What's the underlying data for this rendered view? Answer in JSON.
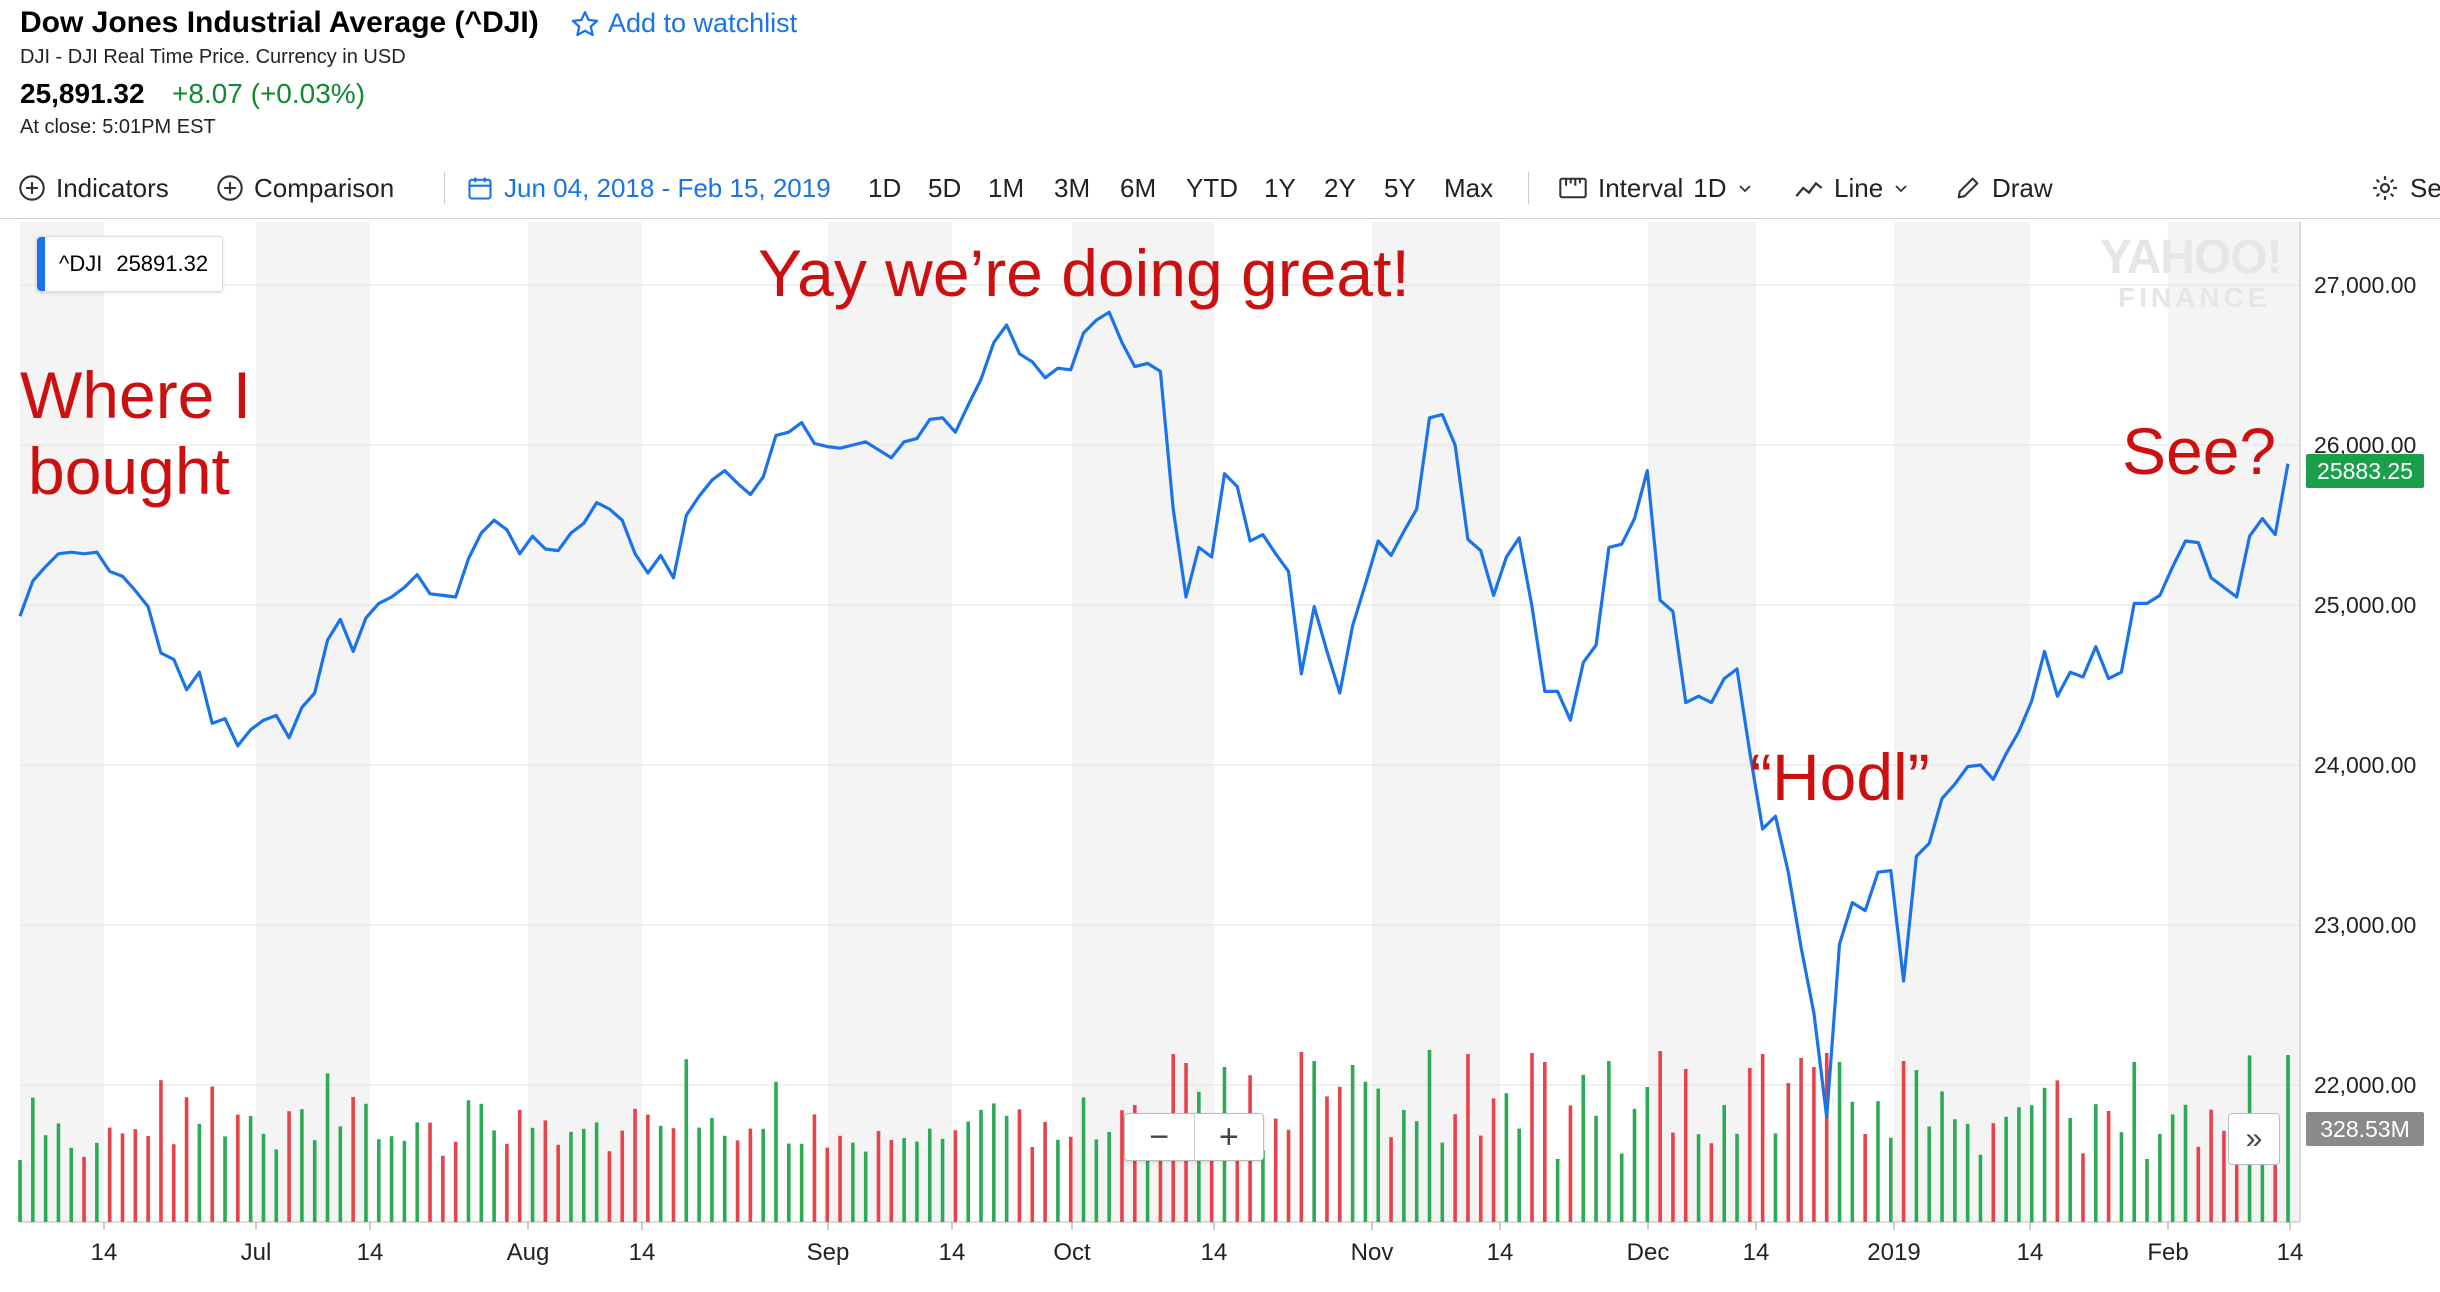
{
  "header": {
    "title": "Dow Jones Industrial Average (^DJI)",
    "watchlist_label": "Add to watchlist",
    "subtitle": "DJI - DJI Real Time Price. Currency in USD",
    "price": "25,891.32",
    "change": "+8.07 (+0.03%)",
    "close_time": "At close: 5:01PM EST"
  },
  "toolbar": {
    "indicators": "Indicators",
    "comparison": "Comparison",
    "date_range": "Jun 04, 2018 - Feb 15, 2019",
    "ranges": [
      "1D",
      "5D",
      "1M",
      "3M",
      "6M",
      "YTD",
      "1Y",
      "2Y",
      "5Y",
      "Max"
    ],
    "interval_label": "Interval",
    "interval_value": "1D",
    "line_label": "Line",
    "draw_label": "Draw",
    "settings_label": "Se"
  },
  "legend": {
    "symbol": "^DJI",
    "value": "25891.32"
  },
  "watermark": {
    "line1": "YAHOO!",
    "line2": "FINANCE"
  },
  "annotations": {
    "bought_line1": "Where I",
    "bought_line2": "bought",
    "great": "Yay we’re doing great!",
    "hodl": "“Hodl”",
    "see": "See?"
  },
  "colors": {
    "line": "#1a73e8",
    "up": "#2daa55",
    "down": "#e8424a",
    "annotation": "#cc1010"
  },
  "chart_data": {
    "type": "line",
    "x_range": [
      "2018-06-04",
      "2019-02-15"
    ],
    "ylim": [
      21200,
      27500
    ],
    "y_ticks": [
      "27,000.00",
      "26,000.00",
      "25,000.00",
      "24,000.00",
      "23,000.00",
      "22,000.00"
    ],
    "x_ticks": [
      "14",
      "Jul",
      "14",
      "Aug",
      "14",
      "Sep",
      "14",
      "Oct",
      "14",
      "Nov",
      "14",
      "Dec",
      "14",
      "2019",
      "14",
      "Feb",
      "14"
    ],
    "last_price_label": "25883.25",
    "volume_label": "328.53M",
    "series": [
      {
        "values": [
          24930,
          25150,
          25240,
          25320,
          25330,
          25320,
          25330,
          25210,
          25180,
          25090,
          24990,
          24700,
          24660,
          24470,
          24580,
          24260,
          24290,
          24120,
          24220,
          24280,
          24310,
          24170,
          24360,
          24450,
          24780,
          24910,
          24710,
          24920,
          25010,
          25050,
          25110,
          25190,
          25070,
          25060,
          25050,
          25290,
          25450,
          25530,
          25470,
          25320,
          25430,
          25350,
          25340,
          25450,
          25510,
          25640,
          25600,
          25530,
          25320,
          25200,
          25310,
          25170,
          25560,
          25680,
          25780,
          25840,
          25760,
          25690,
          25800,
          26060,
          26080,
          26140,
          26010,
          25990,
          25980,
          26000,
          26020,
          25970,
          25920,
          26020,
          26040,
          26160,
          26170,
          26080,
          26250,
          26410,
          26640,
          26750,
          26570,
          26520,
          26420,
          26480,
          26470,
          26700,
          26780,
          26830,
          26640,
          26490,
          26510,
          26460,
          25600,
          25050,
          25360,
          25300,
          25820,
          25740,
          25400,
          25440,
          25320,
          25210,
          24570,
          24990,
          24710,
          24450,
          24870,
          25130,
          25400,
          25310,
          25460,
          25600,
          26170,
          26190,
          26000,
          25410,
          25340,
          25060,
          25300,
          25420,
          24990,
          24460,
          24460,
          24280,
          24640,
          24750,
          25360,
          25380,
          25540,
          25840,
          25030,
          24960,
          24390,
          24430,
          24390,
          24540,
          24600,
          24080,
          23600,
          23680,
          23330,
          22860,
          22450,
          21800,
          22880,
          23140,
          23090,
          23330,
          23340,
          22650,
          23430,
          23510,
          23790,
          23880,
          23990,
          24000,
          23910,
          24070,
          24210,
          24400,
          24710,
          24430,
          24580,
          24550,
          24740,
          24540,
          24580,
          25010,
          25010,
          25060,
          25240,
          25400,
          25390,
          25170,
          25110,
          25050,
          25430,
          25540,
          25440,
          25883
        ]
      }
    ]
  }
}
